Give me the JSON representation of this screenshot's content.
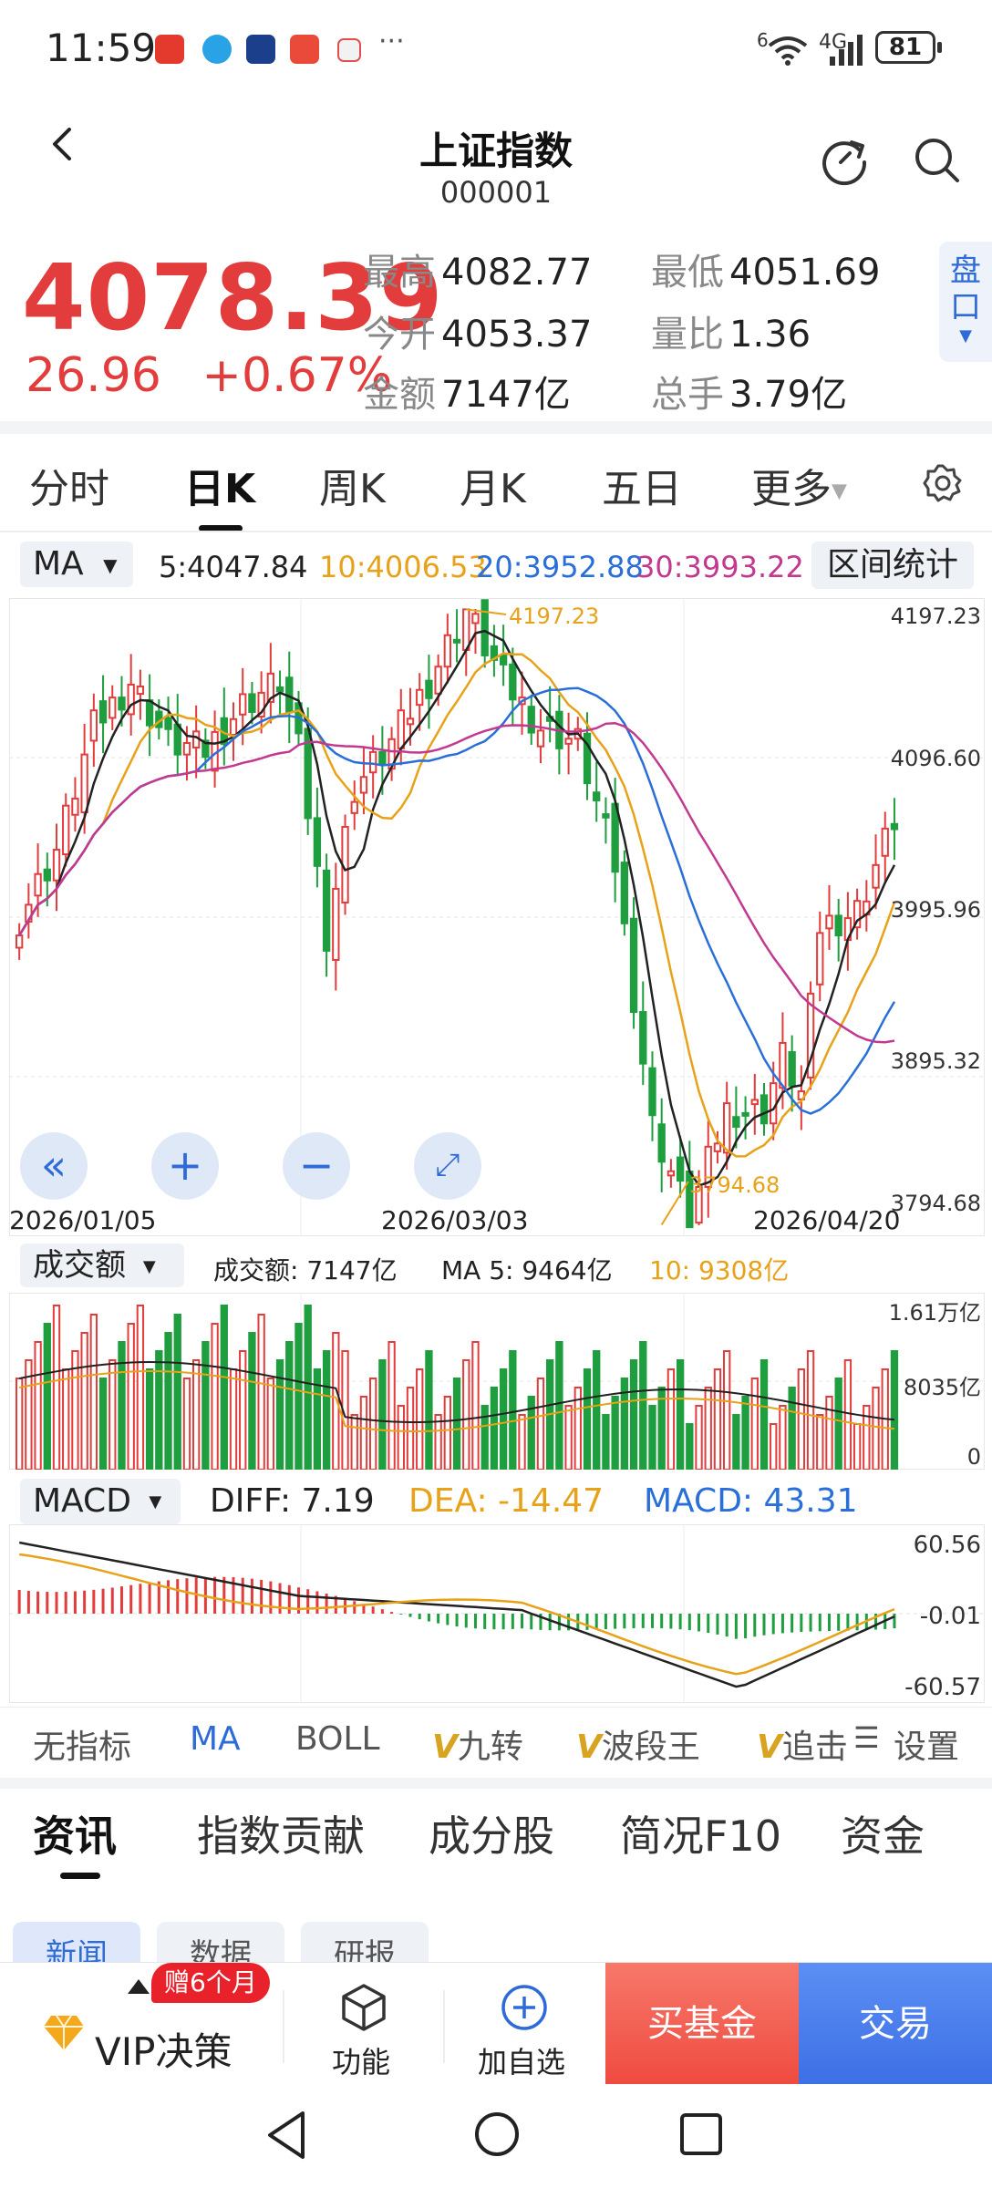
{
  "status_bar": {
    "time": "11:59",
    "app_icons": [
      "taobao-icon",
      "browser-icon",
      "game-icon",
      "music-icon",
      "red-app-icon"
    ],
    "more": "···",
    "network_badge": "6",
    "network_type": "4G",
    "battery": "81"
  },
  "header": {
    "title": "上证指数",
    "code": "000001",
    "refresh_icon": "refresh-icon",
    "search_icon": "search-icon"
  },
  "quote": {
    "price": "4078.39",
    "change": "26.96",
    "change_pct": "+0.67%",
    "stats": [
      {
        "label": "最高",
        "value": "4082.77"
      },
      {
        "label": "最低",
        "value": "4051.69"
      },
      {
        "label": "今开",
        "value": "4053.37"
      },
      {
        "label": "量比",
        "value": "1.36"
      },
      {
        "label": "金额",
        "value": "7147亿"
      },
      {
        "label": "总手",
        "value": "3.79亿"
      }
    ],
    "pankou": "盘口"
  },
  "period_tabs": [
    "分时",
    "日K",
    "周K",
    "月K",
    "五日",
    "更多"
  ],
  "active_period": "日K",
  "ma_bar": {
    "chip": "MA",
    "ma5": "5:4047.84",
    "ma10": "10:4006.53",
    "ma20": "20:3952.88",
    "ma30": "30:3993.22",
    "range_stats": "区间统计"
  },
  "kline": {
    "levels": [
      "4197.23",
      "4096.60",
      "3995.96",
      "3895.32",
      "3794.68"
    ],
    "high_marker": "4197.23",
    "low_marker": "3794.68",
    "dates": [
      "2026/01/05",
      "2026/03/03",
      "2026/04/20"
    ]
  },
  "volume": {
    "chip": "成交额",
    "label": "成交额: 7147亿",
    "ma5": "MA 5: 9464亿",
    "ma10": "10: 9308亿",
    "levels": [
      "1.61万亿",
      "8035亿",
      "0"
    ]
  },
  "macd": {
    "chip": "MACD",
    "diff": "DIFF: 7.19",
    "dea": "DEA: -14.47",
    "macd": "MACD: 43.31",
    "levels": [
      "60.56",
      "-0.01",
      "-60.57"
    ]
  },
  "indicator_tabs": [
    "无指标",
    "MA",
    "BOLL",
    "九转",
    "波段王",
    "追击"
  ],
  "indicator_v_tabs": [
    "九转",
    "波段王",
    "追击"
  ],
  "settings": "设置",
  "info_tabs": [
    "资讯",
    "指数贡献",
    "成分股",
    "简况F10",
    "资金"
  ],
  "sub_tabs": [
    "新闻",
    "数据",
    "研报"
  ],
  "dock": {
    "vip": "VIP决策",
    "vip_badge": "赠6个月",
    "function": "功能",
    "add_watch": "加自选",
    "buy_fund": "买基金",
    "trade": "交易"
  },
  "colors": {
    "up": "#e23c3c",
    "down": "#1e9e3e",
    "ma5": "#222222",
    "ma10": "#e8a21a",
    "ma20": "#2a6fd8",
    "ma30": "#c2398f",
    "accent": "#2f6bd8"
  }
}
